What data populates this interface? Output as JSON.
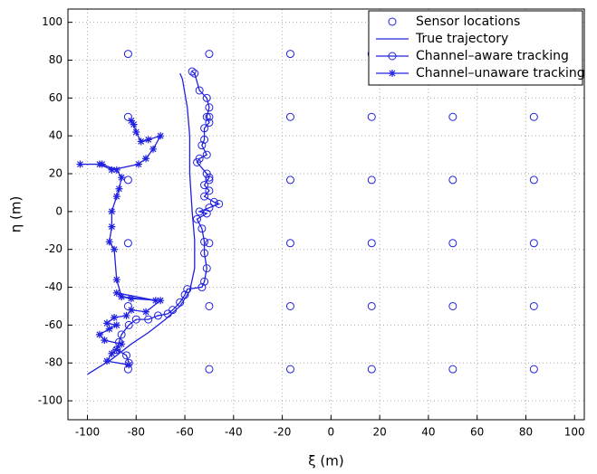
{
  "chart_data": {
    "type": "line",
    "xlabel": "ξ (m)",
    "ylabel": "η (m)",
    "xlim": [
      -108,
      104
    ],
    "ylim": [
      -110,
      107
    ],
    "xticks": [
      -100,
      -80,
      -60,
      -40,
      -20,
      0,
      20,
      40,
      60,
      80,
      100
    ],
    "yticks": [
      -100,
      -80,
      -60,
      -40,
      -20,
      0,
      20,
      40,
      60,
      80,
      100
    ],
    "grid": true,
    "legend": "upper right",
    "series": [
      {
        "name": "Sensor locations",
        "color": "#2020e0",
        "marker": "o",
        "linestyle": "none",
        "x": [
          -83.3,
          -50,
          -16.7,
          16.7,
          50,
          83.3,
          -83.3,
          -50,
          -16.7,
          16.7,
          50,
          83.3,
          -83.3,
          -50,
          -16.7,
          16.7,
          50,
          83.3,
          -83.3,
          -50,
          -16.7,
          16.7,
          50,
          83.3,
          -83.3,
          -50,
          -16.7,
          16.7,
          50,
          83.3,
          -83.3,
          -50,
          -16.7,
          16.7,
          50,
          83.3
        ],
        "y": [
          83.3,
          83.3,
          83.3,
          83.3,
          83.3,
          83.3,
          50,
          50,
          50,
          50,
          50,
          50,
          16.7,
          16.7,
          16.7,
          16.7,
          16.7,
          16.7,
          -16.7,
          -16.7,
          -16.7,
          -16.7,
          -16.7,
          -16.7,
          -50,
          -50,
          -50,
          -50,
          -50,
          -50,
          -83.3,
          -83.3,
          -83.3,
          -83.3,
          -83.3,
          -83.3
        ]
      },
      {
        "name": "True trajectory",
        "color": "#2020e0",
        "marker": "none",
        "linestyle": "solid",
        "x": [
          -100,
          -90,
          -82,
          -75,
          -68,
          -62,
          -58,
          -56,
          -56,
          -57,
          -58,
          -58,
          -59,
          -61,
          -62
        ],
        "y": [
          -86,
          -78,
          -70,
          -64,
          -57,
          -50,
          -42,
          -30,
          -15,
          0,
          20,
          40,
          55,
          70,
          73
        ]
      },
      {
        "name": "Channel–aware tracking",
        "color": "#2020e0",
        "marker": "o",
        "linestyle": "solid",
        "x": [
          -57,
          -56,
          -54,
          -51,
          -50,
          -51,
          -50,
          -52,
          -52,
          -53,
          -51,
          -54,
          -55,
          -51,
          -50,
          -52,
          -50,
          -52,
          -48,
          -46,
          -50,
          -54,
          -51,
          -55,
          -53,
          -52,
          -52,
          -51,
          -52,
          -53,
          -59,
          -60,
          -62,
          -65,
          -67,
          -71,
          -75,
          -80,
          -83,
          -86,
          -87,
          -88,
          -84,
          -83
        ],
        "y": [
          74,
          73,
          64,
          60,
          55,
          50,
          47,
          44,
          38,
          35,
          30,
          28,
          26,
          20,
          18,
          14,
          11,
          8,
          5,
          4,
          2,
          0,
          -1,
          -4,
          -9,
          -16,
          -22,
          -30,
          -37,
          -40,
          -41,
          -44,
          -48,
          -52,
          -54,
          -55,
          -57,
          -57,
          -60,
          -65,
          -69,
          -73,
          -76,
          -80
        ]
      },
      {
        "name": "Channel–unaware tracking",
        "color": "#2020e0",
        "marker": "*",
        "linestyle": "solid",
        "x": [
          -83,
          -92,
          -90,
          -88,
          -86,
          -93,
          -95,
          -91,
          -88,
          -92,
          -89,
          -84,
          -82,
          -76,
          -70,
          -82,
          -86,
          -88,
          -72,
          -86,
          -88,
          -89,
          -91,
          -90,
          -90,
          -88,
          -87,
          -86,
          -88,
          -94,
          -103,
          -95,
          -90,
          -79,
          -76,
          -73,
          -70,
          -75,
          -78,
          -80,
          -81,
          -82
        ],
        "y": [
          -81,
          -79,
          -75,
          -73,
          -70,
          -68,
          -65,
          -62,
          -60,
          -59,
          -56,
          -55,
          -52,
          -53,
          -47,
          -46,
          -45,
          -43,
          -47,
          -45,
          -36,
          -20,
          -16,
          -8,
          0,
          8,
          12,
          18,
          22,
          25,
          25,
          25,
          22,
          25,
          28,
          33,
          40,
          38,
          37,
          42,
          46,
          48
        ]
      }
    ]
  }
}
